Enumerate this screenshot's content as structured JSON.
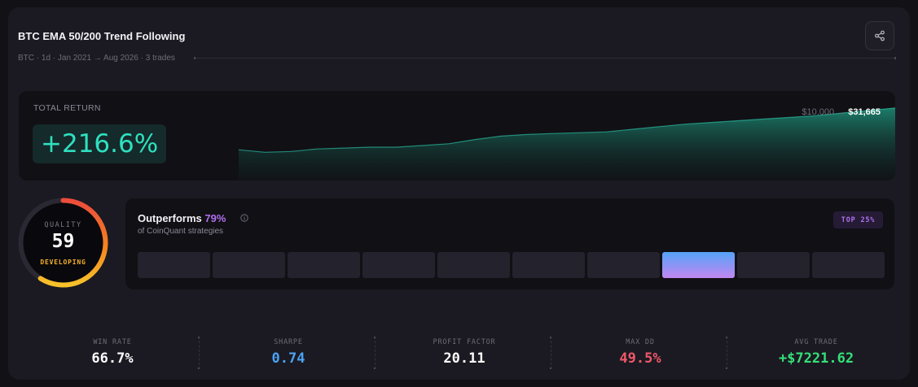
{
  "header": {
    "title": "BTC EMA 50/200 Trend Following",
    "subtitle": "BTC · 1d · Jan 2021 → Aug 2026 · 3 trades",
    "share_icon": "share-icon"
  },
  "total_return": {
    "label": "TOTAL RETURN",
    "value": "+216.6%",
    "start_equity": "$10,000 →",
    "end_equity": "$31,665",
    "accent_color": "#2fe0c0",
    "equity_curve": [
      0.36,
      0.33,
      0.34,
      0.37,
      0.38,
      0.39,
      0.39,
      0.41,
      0.43,
      0.48,
      0.52,
      0.54,
      0.55,
      0.56,
      0.57,
      0.6,
      0.63,
      0.66,
      0.68,
      0.7,
      0.72,
      0.74,
      0.76,
      0.79,
      0.82,
      0.85
    ]
  },
  "quality": {
    "label": "QUALITY",
    "score": "59",
    "score_value": 59,
    "status": "DEVELOPING",
    "status_color": "#f5b12a"
  },
  "outperform": {
    "prefix": "Outperforms",
    "percent": "79%",
    "info_icon": "info-icon",
    "subtitle": "of CoinQuant strategies",
    "badge": "TOP 25%",
    "bin_count": 10,
    "active_bin": 7
  },
  "stats": [
    {
      "label": "WIN RATE",
      "value": "66.7%",
      "color": "#ffffff"
    },
    {
      "label": "SHARPE",
      "value": "0.74",
      "color": "#4aa3f5"
    },
    {
      "label": "PROFIT FACTOR",
      "value": "20.11",
      "color": "#ffffff"
    },
    {
      "label": "MAX DD",
      "value": "49.5%",
      "color": "#f0586a"
    },
    {
      "label": "AVG TRADE",
      "value": "+$7221.62",
      "color": "#34e078"
    }
  ]
}
